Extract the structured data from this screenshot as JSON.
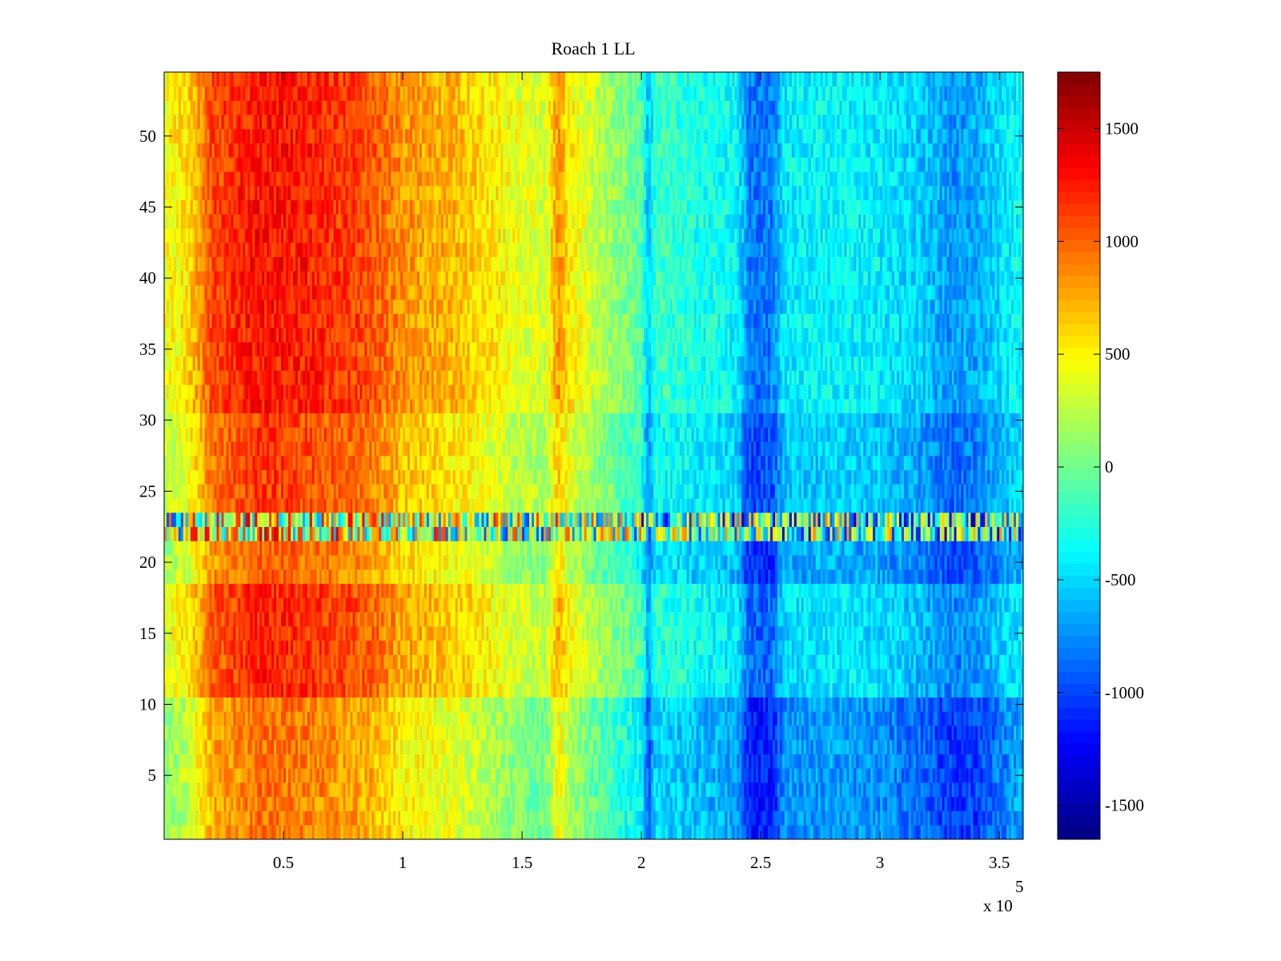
{
  "chart_data": {
    "type": "heatmap",
    "title": "Roach 1 LL",
    "xlabel": "",
    "ylabel": "",
    "x_multiplier_label": "x 10",
    "x_multiplier_exponent": "5",
    "xlim": [
      0,
      360000
    ],
    "ylim": [
      0.5,
      54.5
    ],
    "rows": 54,
    "x_ticks": [
      0.5,
      1,
      1.5,
      2,
      2.5,
      3,
      3.5
    ],
    "x_tick_labels": [
      "0.5",
      "1",
      "1.5",
      "2",
      "2.5",
      "3",
      "3.5"
    ],
    "y_ticks": [
      5,
      10,
      15,
      20,
      25,
      30,
      35,
      40,
      45,
      50
    ],
    "y_tick_labels": [
      "5",
      "10",
      "15",
      "20",
      "25",
      "30",
      "35",
      "40",
      "45",
      "50"
    ],
    "colorbar": {
      "colormap": "jet",
      "clim": [
        -1650,
        1750
      ],
      "ticks": [
        -1500,
        -1000,
        -500,
        0,
        500,
        1000,
        1500
      ],
      "tick_labels": [
        "-1500",
        "-1000",
        "-500",
        "0",
        "500",
        "1000",
        "1500"
      ]
    },
    "column_profile": {
      "x": [
        0,
        10000,
        20000,
        40000,
        60000,
        85000,
        100000,
        125000,
        150000,
        160000,
        165000,
        170000,
        180000,
        200000,
        203000,
        206000,
        215000,
        240000,
        245000,
        255000,
        260000,
        280000,
        300000,
        315000,
        330000,
        340000,
        360000
      ],
      "value": [
        250,
        400,
        900,
        1100,
        1050,
        900,
        650,
        500,
        200,
        150,
        650,
        350,
        100,
        -250,
        -800,
        -350,
        -400,
        -550,
        -1000,
        -1000,
        -600,
        -550,
        -600,
        -700,
        -900,
        -850,
        -500
      ]
    },
    "row_bands": [
      {
        "rows": [
          1,
          10
        ],
        "offset": -150
      },
      {
        "rows": [
          11,
          18
        ],
        "offset": 120
      },
      {
        "rows": [
          19,
          21
        ],
        "offset": -80
      },
      {
        "rows": [
          22,
          23
        ],
        "offset": 0,
        "note_noisy": true
      },
      {
        "rows": [
          24,
          30
        ],
        "offset": 30
      },
      {
        "rows": [
          31,
          54
        ],
        "offset": 180
      }
    ]
  }
}
